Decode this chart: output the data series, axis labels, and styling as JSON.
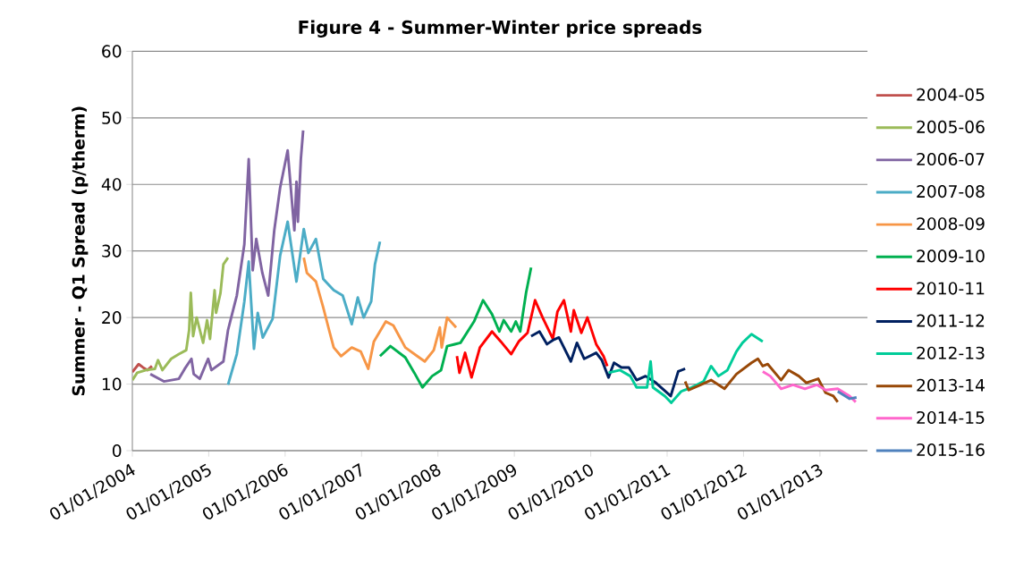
{
  "chart_data": {
    "type": "line",
    "title": "Figure 4 - Summer-Winter price spreads",
    "ylabel": "Summer - Q1 Spread (p/therm)",
    "xlim": [
      "2004-01-01",
      "2013-08-16"
    ],
    "xticks": [
      {
        "value": "2004-01-01",
        "label": "01/01/2004"
      },
      {
        "value": "2005-01-01",
        "label": "01/01/2005"
      },
      {
        "value": "2006-01-01",
        "label": "01/01/2006"
      },
      {
        "value": "2007-01-01",
        "label": "01/01/2007"
      },
      {
        "value": "2008-01-01",
        "label": "01/01/2008"
      },
      {
        "value": "2009-01-01",
        "label": "01/01/2009"
      },
      {
        "value": "2010-01-01",
        "label": "01/01/2010"
      },
      {
        "value": "2011-01-01",
        "label": "01/01/2011"
      },
      {
        "value": "2012-01-01",
        "label": "01/01/2012"
      },
      {
        "value": "2013-01-01",
        "label": "01/01/2013"
      }
    ],
    "ylim": [
      0,
      60
    ],
    "yticks": [
      0,
      10,
      20,
      30,
      40,
      50,
      60
    ],
    "grid": "y",
    "legend": "right",
    "marker": "none",
    "line_style": "solid",
    "series": [
      {
        "name": "2004-05",
        "color": "#c0504d",
        "x": [
          "2004-01-01",
          "2004-01-31",
          "2004-02-21",
          "2004-03-14",
          "2004-04-04"
        ],
        "values": [
          11.8,
          13.0,
          12.5,
          12.1,
          12.7
        ]
      },
      {
        "name": "2005-06",
        "color": "#9bbb59",
        "x": [
          "2004-01-01",
          "2004-01-24",
          "2004-03-07",
          "2004-04-18",
          "2004-05-03",
          "2004-05-24",
          "2004-07-05",
          "2004-08-11",
          "2004-09-15",
          "2004-09-29",
          "2004-10-07",
          "2004-10-18",
          "2004-11-04",
          "2004-12-05",
          "2004-12-24",
          "2005-01-07",
          "2005-01-29",
          "2005-02-05",
          "2005-02-26",
          "2005-03-12",
          "2005-04-03"
        ],
        "values": [
          10.6,
          11.7,
          12.1,
          12.3,
          13.6,
          12.1,
          13.8,
          14.5,
          15.1,
          18.1,
          23.7,
          17.2,
          20.0,
          16.2,
          19.6,
          16.8,
          24.1,
          20.7,
          23.7,
          28.0,
          29.0
        ]
      },
      {
        "name": "2006-07",
        "color": "#8064a2",
        "x": [
          "2004-03-27",
          "2004-05-31",
          "2004-08-11",
          "2004-09-08",
          "2004-10-10",
          "2004-10-21",
          "2004-11-19",
          "2004-12-29",
          "2005-01-14",
          "2005-03-12",
          "2005-04-03",
          "2005-05-15",
          "2005-06-20",
          "2005-07-11",
          "2005-07-30",
          "2005-08-16",
          "2005-09-14",
          "2005-10-12",
          "2005-11-10",
          "2005-12-08",
          "2006-01-13",
          "2006-02-14",
          "2006-02-24",
          "2006-03-03",
          "2006-03-17",
          "2006-03-28"
        ],
        "values": [
          11.5,
          10.4,
          10.8,
          12.3,
          13.8,
          11.5,
          10.8,
          13.8,
          12.1,
          13.4,
          18.1,
          23.3,
          31.0,
          43.8,
          27.1,
          31.8,
          26.7,
          23.3,
          33.1,
          39.5,
          45.1,
          33.1,
          40.4,
          34.4,
          43.8,
          48.1
        ]
      },
      {
        "name": "2007-08",
        "color": "#4bacc6",
        "x": [
          "2005-04-03",
          "2005-05-15",
          "2005-06-20",
          "2005-07-11",
          "2005-08-05",
          "2005-08-23",
          "2005-09-16",
          "2005-11-02",
          "2005-12-08",
          "2006-01-13",
          "2006-02-24",
          "2006-03-31",
          "2006-04-22",
          "2006-05-28",
          "2006-07-02",
          "2006-08-21",
          "2006-10-03",
          "2006-11-15",
          "2006-12-14",
          "2007-01-11",
          "2007-02-16",
          "2007-03-06",
          "2007-03-30"
        ],
        "values": [
          9.9,
          14.5,
          22.4,
          28.4,
          15.3,
          20.7,
          17.0,
          19.8,
          29.3,
          34.4,
          25.4,
          33.3,
          29.7,
          31.8,
          25.8,
          24.1,
          23.3,
          19.0,
          23.0,
          20.0,
          22.4,
          28.0,
          31.4
        ]
      },
      {
        "name": "2008-09",
        "color": "#f79646",
        "x": [
          "2006-03-31",
          "2006-04-15",
          "2006-05-28",
          "2006-07-02",
          "2006-07-30",
          "2006-08-21",
          "2006-09-25",
          "2006-11-15",
          "2006-12-28",
          "2007-02-02",
          "2007-03-01",
          "2007-04-27",
          "2007-06-02",
          "2007-07-29",
          "2007-09-24",
          "2007-10-30",
          "2007-12-12",
          "2008-01-10",
          "2008-01-19",
          "2008-02-14",
          "2008-03-28"
        ],
        "values": [
          29.0,
          26.7,
          25.4,
          21.5,
          18.1,
          15.5,
          14.2,
          15.5,
          14.9,
          12.3,
          16.4,
          19.4,
          18.8,
          15.5,
          14.2,
          13.4,
          15.1,
          18.5,
          15.5,
          20.0,
          18.5
        ]
      },
      {
        "name": "2009-10",
        "color": "#00b050",
        "x": [
          "2007-03-30",
          "2007-05-19",
          "2007-07-29",
          "2007-09-10",
          "2007-10-19",
          "2007-12-04",
          "2008-01-16",
          "2008-02-14",
          "2008-04-18",
          "2008-06-22",
          "2008-08-04",
          "2008-09-16",
          "2008-10-21",
          "2008-11-11",
          "2008-12-17",
          "2009-01-08",
          "2009-01-29",
          "2009-02-26",
          "2009-03-22"
        ],
        "values": [
          14.2,
          15.7,
          14.0,
          11.7,
          9.5,
          11.2,
          12.1,
          15.7,
          16.2,
          19.4,
          22.6,
          20.5,
          17.9,
          19.6,
          17.9,
          19.4,
          17.9,
          23.7,
          27.5
        ]
      },
      {
        "name": "2010-11",
        "color": "#ff0000",
        "x": [
          "2008-04-01",
          "2008-04-13",
          "2008-05-10",
          "2008-06-10",
          "2008-07-20",
          "2008-09-16",
          "2008-10-28",
          "2008-12-17",
          "2009-01-22",
          "2009-03-05",
          "2009-04-10",
          "2009-05-16",
          "2009-07-04",
          "2009-07-26",
          "2009-08-26",
          "2009-09-28",
          "2009-10-12",
          "2009-11-17",
          "2009-12-16",
          "2010-01-27",
          "2010-03-03",
          "2010-03-21"
        ],
        "values": [
          14.2,
          11.7,
          14.7,
          11.0,
          15.5,
          17.9,
          16.4,
          14.5,
          16.4,
          17.7,
          22.6,
          20.0,
          16.8,
          20.9,
          22.6,
          17.9,
          21.1,
          17.7,
          20.0,
          16.0,
          14.2,
          12.7
        ]
      },
      {
        "name": "2011-12",
        "color": "#002060",
        "x": [
          "2009-03-22",
          "2009-05-01",
          "2009-06-06",
          "2009-07-04",
          "2009-08-02",
          "2009-09-28",
          "2009-10-27",
          "2009-12-01",
          "2010-01-27",
          "2010-02-23",
          "2010-03-27",
          "2010-04-22",
          "2010-05-28",
          "2010-07-02",
          "2010-08-08",
          "2010-09-20",
          "2010-11-08",
          "2011-01-18",
          "2011-02-23",
          "2011-03-28"
        ],
        "values": [
          17.2,
          17.9,
          16.0,
          16.6,
          17.0,
          13.4,
          16.2,
          13.8,
          14.7,
          13.6,
          11.0,
          13.2,
          12.5,
          12.5,
          10.6,
          11.2,
          10.2,
          8.2,
          11.9,
          12.3
        ]
      },
      {
        "name": "2012-13",
        "color": "#00cc99",
        "x": [
          "2010-03-27",
          "2010-05-21",
          "2010-07-09",
          "2010-08-08",
          "2010-09-27",
          "2010-10-14",
          "2010-10-25",
          "2010-12-21",
          "2011-01-21",
          "2011-03-09",
          "2011-04-28",
          "2011-06-24",
          "2011-07-30",
          "2011-09-03",
          "2011-10-16",
          "2011-11-28",
          "2011-12-27",
          "2012-02-08",
          "2012-04-02"
        ],
        "values": [
          11.7,
          12.1,
          11.2,
          9.5,
          9.5,
          13.4,
          9.5,
          8.2,
          7.2,
          8.9,
          9.5,
          10.4,
          12.7,
          11.2,
          12.1,
          14.9,
          16.2,
          17.5,
          16.4
        ]
      },
      {
        "name": "2013-14",
        "color": "#984807",
        "x": [
          "2011-03-28",
          "2011-04-14",
          "2011-06-10",
          "2011-07-30",
          "2011-10-02",
          "2011-11-28",
          "2012-02-08",
          "2012-03-10",
          "2012-04-02",
          "2012-04-26",
          "2012-06-29",
          "2012-08-04",
          "2012-09-22",
          "2012-10-28",
          "2012-12-24",
          "2013-01-28",
          "2013-03-06",
          "2013-03-27"
        ],
        "values": [
          10.4,
          9.1,
          9.9,
          10.6,
          9.3,
          11.5,
          13.2,
          13.8,
          12.7,
          13.0,
          10.6,
          12.1,
          11.2,
          10.2,
          10.8,
          8.7,
          8.2,
          7.3
        ]
      },
      {
        "name": "2014-15",
        "color": "#ff66cc",
        "x": [
          "2012-04-02",
          "2012-05-08",
          "2012-06-29",
          "2012-08-25",
          "2012-10-21",
          "2012-12-17",
          "2013-01-28",
          "2013-03-27",
          "2013-05-23",
          "2013-06-21"
        ],
        "values": [
          11.9,
          11.2,
          9.3,
          9.9,
          9.3,
          9.9,
          9.1,
          9.3,
          8.2,
          7.3
        ]
      },
      {
        "name": "2015-16",
        "color": "#4f81bd",
        "x": [
          "2013-03-27",
          "2013-05-23",
          "2013-06-25"
        ],
        "values": [
          8.9,
          7.8,
          8.0
        ]
      }
    ]
  }
}
